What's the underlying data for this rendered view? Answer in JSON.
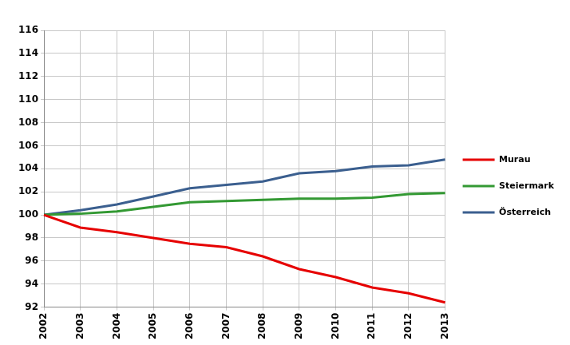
{
  "chart_data": {
    "type": "line",
    "categories": [
      "2002",
      "2003",
      "2004",
      "2005",
      "2006",
      "2007",
      "2008",
      "2009",
      "2010",
      "2011",
      "2012",
      "2013"
    ],
    "series": [
      {
        "name": "Murau",
        "color": "#e60000",
        "values": [
          100,
          98.9,
          98.5,
          98.0,
          97.5,
          97.2,
          96.4,
          95.3,
          94.6,
          93.7,
          93.2,
          92.4
        ]
      },
      {
        "name": "Steiermark",
        "color": "#339933",
        "values": [
          100,
          100.1,
          100.3,
          100.7,
          101.1,
          101.2,
          101.3,
          101.4,
          101.4,
          101.5,
          101.8,
          101.9
        ]
      },
      {
        "name": "Österreich",
        "color": "#3b5f8f",
        "values": [
          100,
          100.4,
          100.9,
          101.6,
          102.3,
          102.6,
          102.9,
          103.6,
          103.8,
          104.2,
          104.3,
          104.8
        ]
      }
    ],
    "ylim": [
      92,
      116
    ],
    "yticks": [
      92,
      94,
      96,
      98,
      100,
      102,
      104,
      106,
      108,
      110,
      112,
      114,
      116
    ],
    "grid": true,
    "legend": "right"
  }
}
